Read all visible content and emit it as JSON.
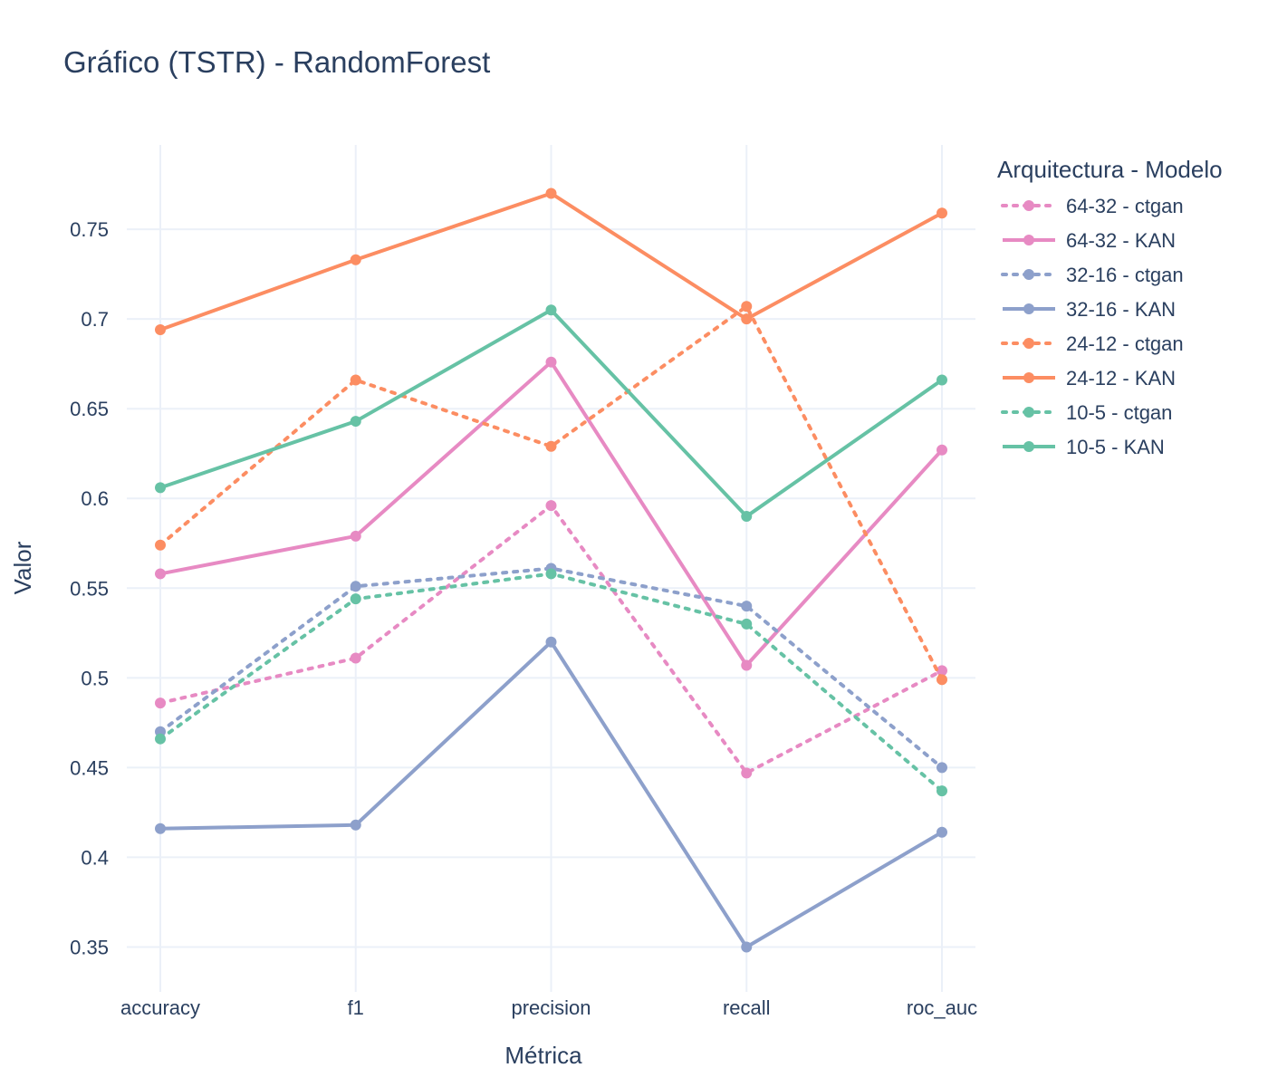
{
  "chart_data": {
    "type": "line",
    "title": "Gráfico (TSTR) - RandomForest",
    "xlabel": "Métrica",
    "ylabel": "Valor",
    "categories": [
      "accuracy",
      "f1",
      "precision",
      "recall",
      "roc_auc"
    ],
    "ylim": [
      0.325,
      0.797
    ],
    "yticks": [
      0.35,
      0.4,
      0.45,
      0.5,
      0.55,
      0.6,
      0.65,
      0.7,
      0.75
    ],
    "ytick_labels": [
      "0.35",
      "0.4",
      "0.45",
      "0.5",
      "0.55",
      "0.6",
      "0.65",
      "0.7",
      "0.75"
    ],
    "grid": true,
    "legend": {
      "title": "Arquitectura - Modelo",
      "position": "right"
    },
    "series": [
      {
        "name": "64-32 - ctgan",
        "color": "#e78ac3",
        "dash": "dot",
        "values": [
          0.486,
          0.511,
          0.596,
          0.447,
          0.504
        ]
      },
      {
        "name": "64-32 - KAN",
        "color": "#e78ac3",
        "dash": "solid",
        "values": [
          0.558,
          0.579,
          0.676,
          0.507,
          0.627
        ]
      },
      {
        "name": "32-16 - ctgan",
        "color": "#8da0cb",
        "dash": "dot",
        "values": [
          0.47,
          0.551,
          0.561,
          0.54,
          0.45
        ]
      },
      {
        "name": "32-16 - KAN",
        "color": "#8da0cb",
        "dash": "solid",
        "values": [
          0.416,
          0.418,
          0.52,
          0.35,
          0.414
        ]
      },
      {
        "name": "24-12 - ctgan",
        "color": "#fc8d62",
        "dash": "dot",
        "values": [
          0.574,
          0.666,
          0.629,
          0.707,
          0.499
        ]
      },
      {
        "name": "24-12 - KAN",
        "color": "#fc8d62",
        "dash": "solid",
        "values": [
          0.694,
          0.733,
          0.77,
          0.7,
          0.759
        ]
      },
      {
        "name": "10-5 - ctgan",
        "color": "#66c2a5",
        "dash": "dot",
        "values": [
          0.466,
          0.544,
          0.558,
          0.53,
          0.437
        ]
      },
      {
        "name": "10-5 - KAN",
        "color": "#66c2a5",
        "dash": "solid",
        "values": [
          0.606,
          0.643,
          0.705,
          0.59,
          0.666
        ]
      }
    ]
  }
}
